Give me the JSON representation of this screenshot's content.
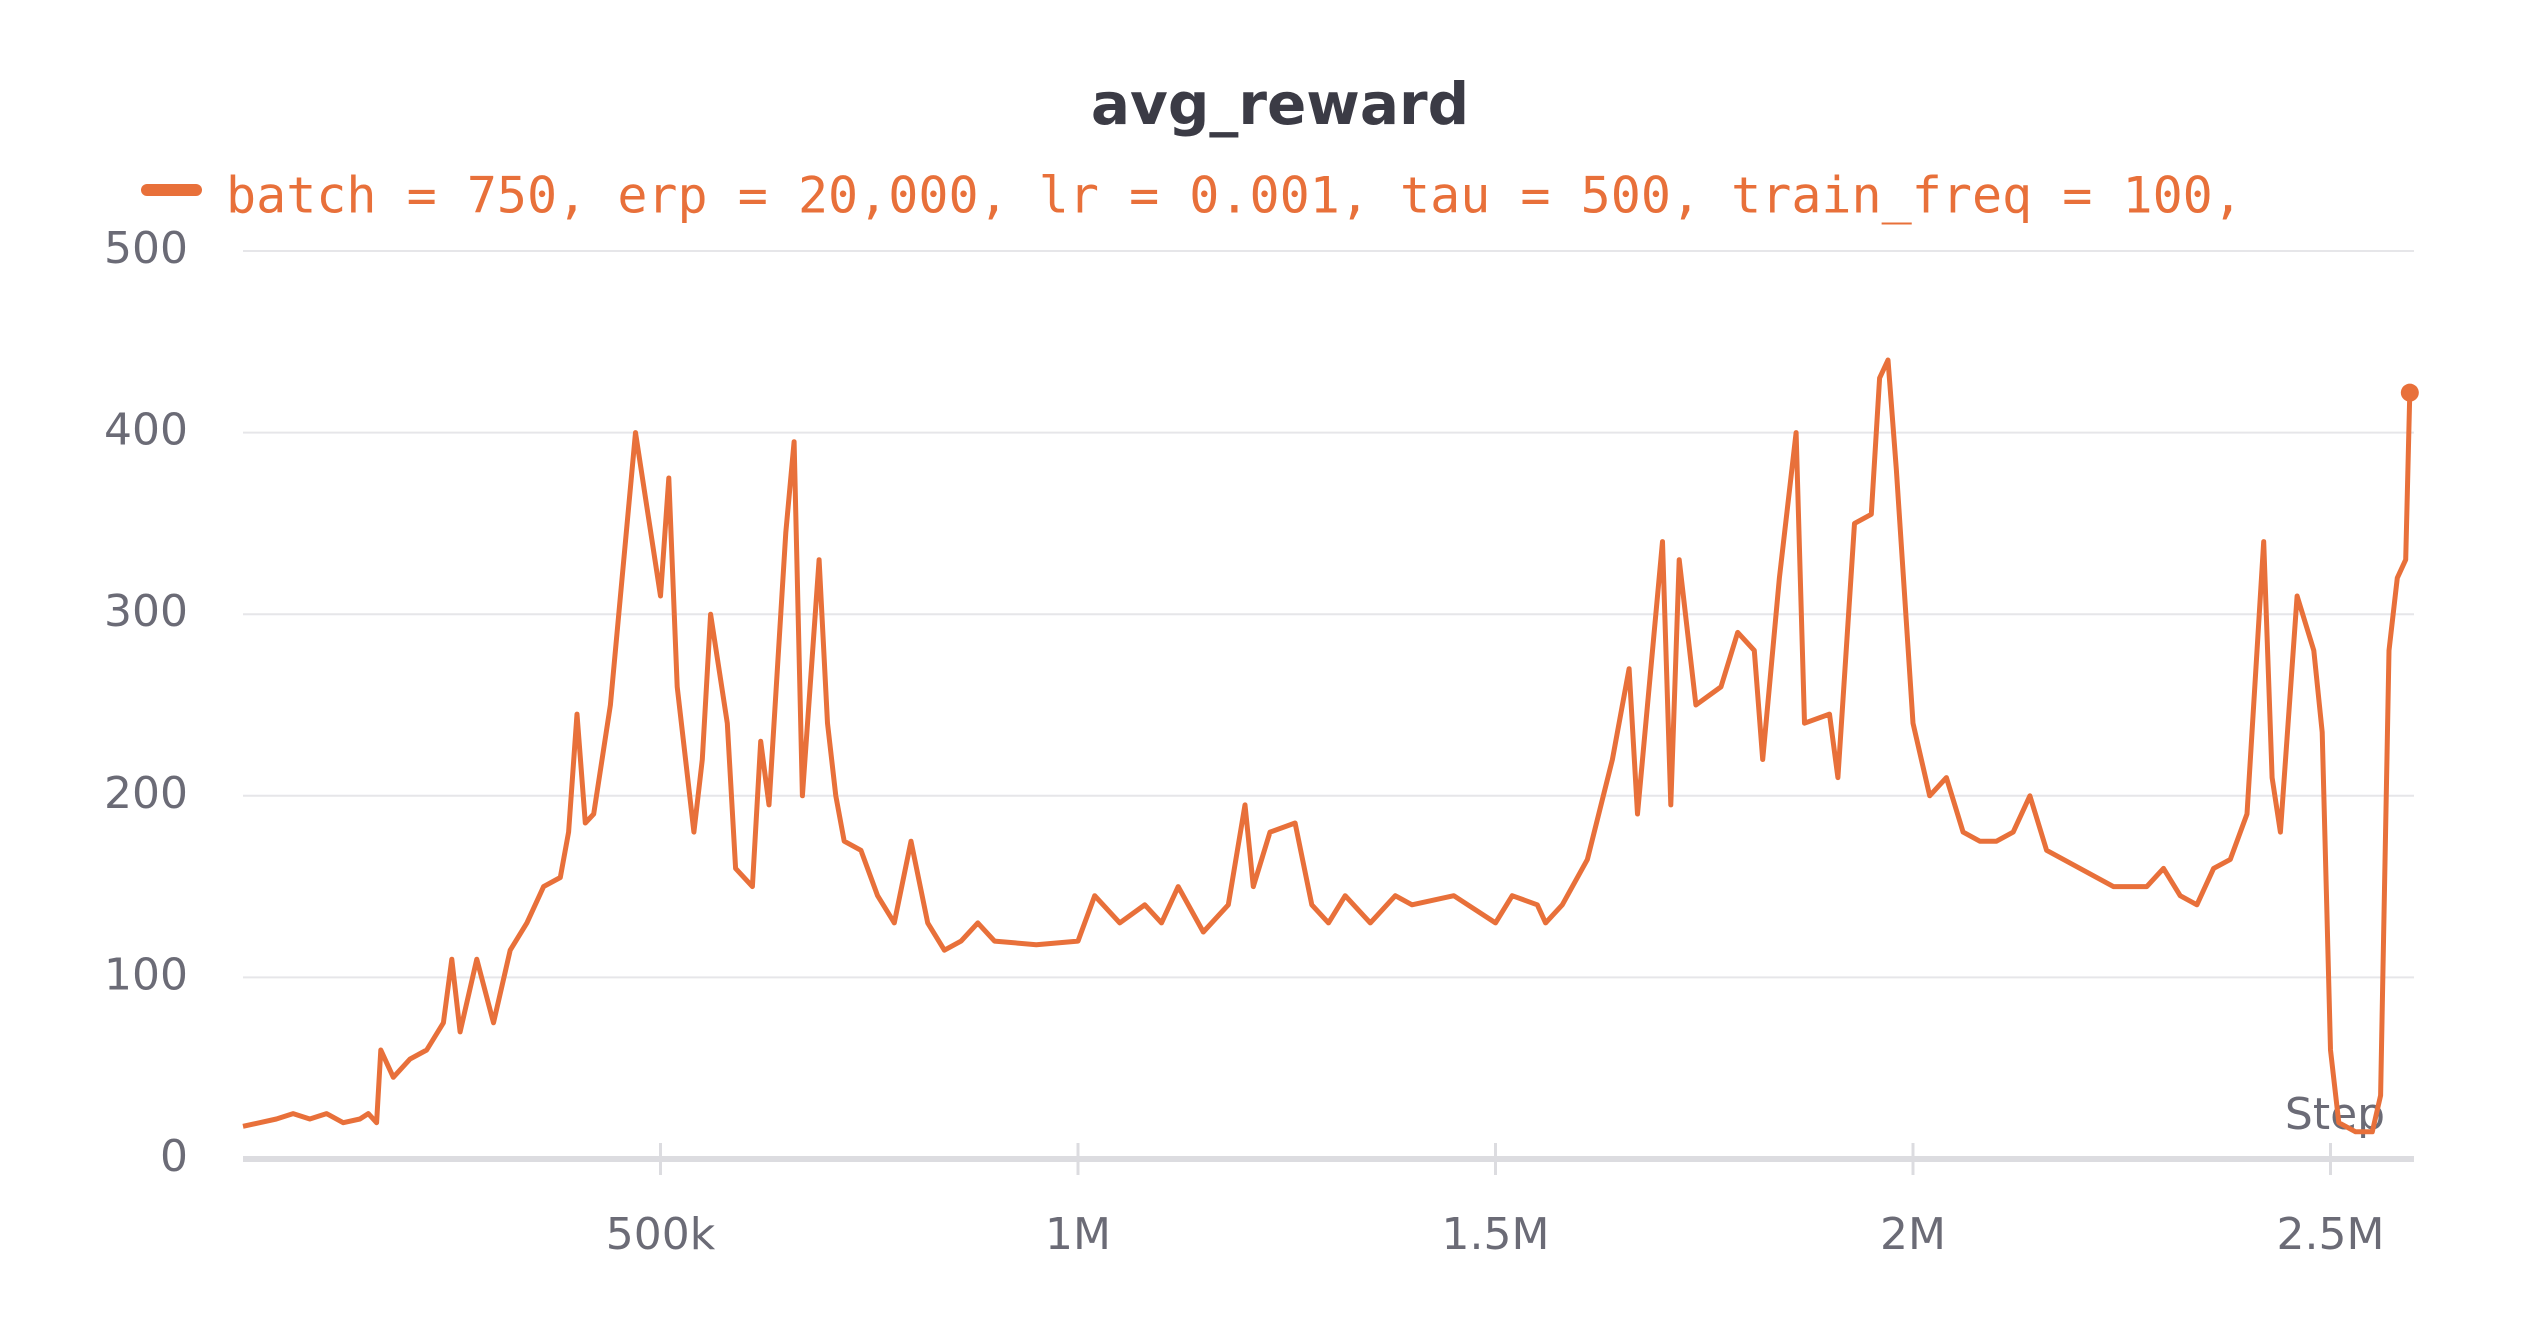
{
  "chart_data": {
    "type": "line",
    "title": "avg_reward",
    "x_label": "Step",
    "series": [
      {
        "name": "batch = 750, erp = 20,000, lr = 0.001, tau = 500, train_freq = 100,",
        "color": "#e8703a",
        "x": [
          0,
          20000,
          40000,
          60000,
          80000,
          100000,
          120000,
          140000,
          150000,
          160000,
          165000,
          180000,
          200000,
          220000,
          240000,
          250000,
          260000,
          280000,
          300000,
          320000,
          340000,
          360000,
          380000,
          390000,
          400000,
          410000,
          420000,
          440000,
          470000,
          500000,
          510000,
          520000,
          540000,
          550000,
          560000,
          580000,
          590000,
          610000,
          620000,
          630000,
          650000,
          660000,
          670000,
          690000,
          700000,
          710000,
          720000,
          740000,
          760000,
          780000,
          800000,
          820000,
          840000,
          860000,
          880000,
          900000,
          950000,
          1000000,
          1020000,
          1050000,
          1080000,
          1100000,
          1120000,
          1150000,
          1180000,
          1200000,
          1210000,
          1230000,
          1260000,
          1280000,
          1300000,
          1320000,
          1350000,
          1380000,
          1400000,
          1450000,
          1500000,
          1520000,
          1550000,
          1560000,
          1580000,
          1610000,
          1640000,
          1660000,
          1670000,
          1700000,
          1710000,
          1720000,
          1740000,
          1770000,
          1790000,
          1810000,
          1820000,
          1840000,
          1860000,
          1870000,
          1900000,
          1910000,
          1930000,
          1950000,
          1960000,
          1970000,
          1980000,
          2000000,
          2020000,
          2040000,
          2060000,
          2080000,
          2100000,
          2120000,
          2140000,
          2160000,
          2200000,
          2240000,
          2280000,
          2300000,
          2320000,
          2340000,
          2360000,
          2380000,
          2400000,
          2420000,
          2430000,
          2440000,
          2460000,
          2480000,
          2490000,
          2500000,
          2510000,
          2530000,
          2550000,
          2560000,
          2570000,
          2580000,
          2590000,
          2595000
        ],
        "values": [
          18,
          20,
          22,
          25,
          22,
          25,
          20,
          22,
          25,
          20,
          60,
          45,
          55,
          60,
          75,
          110,
          70,
          110,
          75,
          115,
          130,
          150,
          155,
          180,
          245,
          185,
          190,
          250,
          400,
          310,
          375,
          260,
          180,
          220,
          300,
          240,
          160,
          150,
          230,
          195,
          345,
          395,
          200,
          330,
          240,
          200,
          175,
          170,
          145,
          130,
          175,
          130,
          115,
          120,
          130,
          120,
          118,
          120,
          145,
          130,
          140,
          130,
          150,
          125,
          140,
          195,
          150,
          180,
          185,
          140,
          130,
          145,
          130,
          145,
          140,
          145,
          130,
          145,
          140,
          130,
          140,
          165,
          220,
          270,
          190,
          340,
          195,
          330,
          250,
          260,
          290,
          280,
          220,
          320,
          400,
          240,
          245,
          210,
          350,
          355,
          430,
          440,
          380,
          240,
          200,
          210,
          180,
          175,
          175,
          180,
          200,
          170,
          160,
          150,
          150,
          160,
          145,
          140,
          160,
          165,
          190,
          340,
          210,
          180,
          310,
          280,
          235,
          60,
          20,
          15,
          15,
          35,
          280,
          320,
          330,
          422
        ]
      }
    ],
    "xlim": [
      0,
      2600000
    ],
    "ylim": [
      0,
      500
    ],
    "xticks": [
      {
        "value": 500000,
        "label": "500k"
      },
      {
        "value": 1000000,
        "label": "1M"
      },
      {
        "value": 1500000,
        "label": "1.5M"
      },
      {
        "value": 2000000,
        "label": "2M"
      },
      {
        "value": 2500000,
        "label": "2.5M"
      }
    ],
    "yticks": [
      0,
      100,
      200,
      300,
      400,
      500
    ],
    "grid": true
  }
}
